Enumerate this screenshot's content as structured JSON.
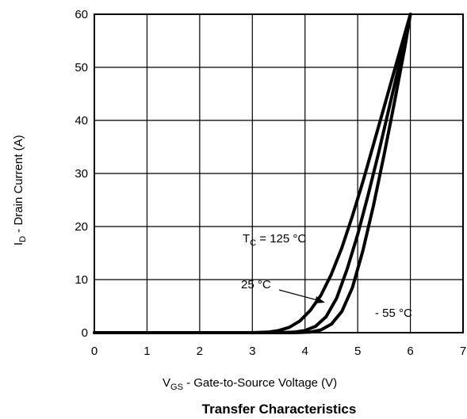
{
  "chart_data": {
    "type": "line",
    "title": "Transfer Characteristics",
    "xlabel": {
      "main": "V",
      "sub": "GS",
      "rest": " -  Gate-to-Source Voltage (V)"
    },
    "ylabel": {
      "main": "I",
      "sub": "D",
      "rest": " -  Drain Current (A)"
    },
    "xlim": [
      0,
      7
    ],
    "ylim": [
      0,
      60
    ],
    "xticks": [
      0,
      1,
      2,
      3,
      4,
      5,
      6,
      7
    ],
    "yticks": [
      0,
      10,
      20,
      30,
      40,
      50,
      60
    ],
    "grid": true,
    "series": [
      {
        "name": "125 °C",
        "x": [
          0,
          3.0,
          3.3,
          3.5,
          3.7,
          3.9,
          4.1,
          4.3,
          4.5,
          4.7,
          4.9,
          5.1,
          5.3,
          5.5,
          5.7,
          5.9,
          6.0
        ],
        "y": [
          0,
          0,
          0.1,
          0.4,
          1.0,
          2.2,
          4.2,
          7.0,
          11.0,
          16.0,
          22.0,
          28.5,
          35.5,
          42.5,
          49.5,
          56.5,
          60.0
        ]
      },
      {
        "name": "25 °C",
        "x": [
          0,
          3.5,
          3.8,
          4.0,
          4.2,
          4.4,
          4.6,
          4.8,
          5.0,
          5.2,
          5.4,
          5.6,
          5.8,
          6.0
        ],
        "y": [
          0,
          0,
          0.1,
          0.4,
          1.2,
          3.0,
          6.5,
          12.0,
          18.5,
          26.0,
          34.0,
          42.5,
          51.0,
          60.0
        ]
      },
      {
        "name": "- 55 °C",
        "x": [
          0,
          3.8,
          4.1,
          4.3,
          4.5,
          4.7,
          4.9,
          5.1,
          5.3,
          5.5,
          5.7,
          5.9,
          6.0
        ],
        "y": [
          0,
          0,
          0.1,
          0.5,
          1.6,
          4.0,
          8.5,
          15.5,
          24.0,
          33.5,
          43.5,
          54.0,
          60.0
        ]
      }
    ],
    "annotations": {
      "tc_prefix": "T",
      "tc_sub": "C",
      "tc_rest": " = 125 °C",
      "mid": "25 °C",
      "low": "- 55 °C"
    }
  }
}
